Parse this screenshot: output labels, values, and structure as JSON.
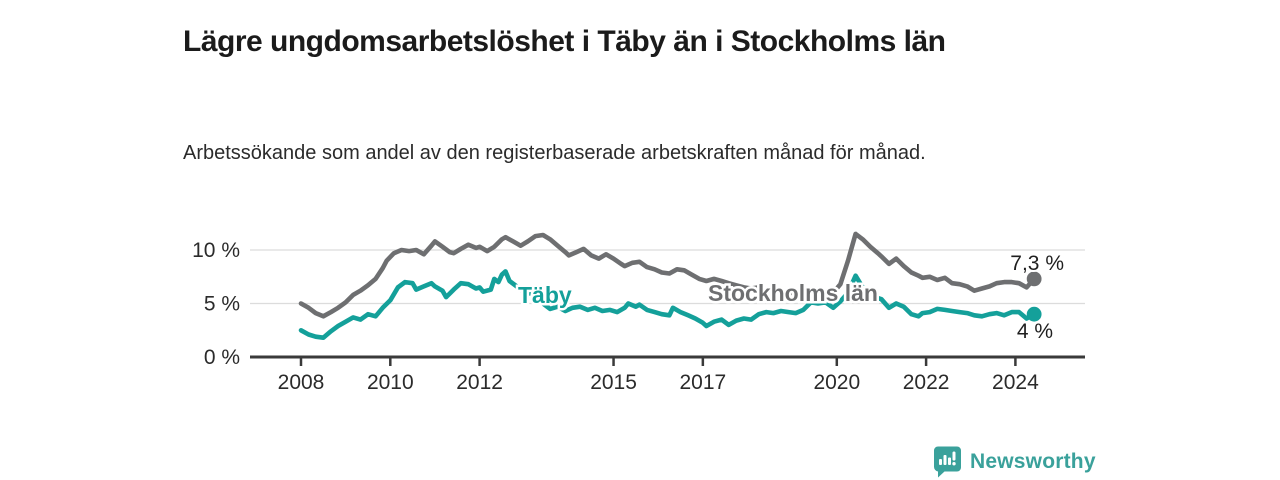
{
  "header": {
    "title": "Lägre ungdomsarbetslöshet i Täby än i Stockholms län",
    "subtitle": "Arbetssökande som andel av den registerbaserade arbetskraften månad för månad."
  },
  "footer": {
    "brand": "Newsworthy",
    "brand_color": "#3AA19B",
    "logo_icon": "newsworthy-bubble-chart-icon"
  },
  "colors": {
    "taby_line": "#14A09A",
    "stockholm_line": "#6E6F71",
    "axis": "#3a3a3a",
    "grid": "#dcdcdc",
    "tick_label": "#2b2b2b",
    "end_label": "#1f1f1f"
  },
  "chart_data": {
    "type": "line",
    "title": "Lägre ungdomsarbetslöshet i Täby än i Stockholms län",
    "subtitle": "Arbetssökande som andel av den registerbaserade arbetskraften månad för månad.",
    "unit": "%",
    "grid": "horizontal-on",
    "legend_position": "inline-labels",
    "x_range": [
      2008,
      2024.42
    ],
    "ylim": [
      0,
      12
    ],
    "x_ticks": [
      {
        "v": 2008,
        "label": "2008"
      },
      {
        "v": 2010,
        "label": "2010"
      },
      {
        "v": 2012,
        "label": "2012"
      },
      {
        "v": 2015,
        "label": "2015"
      },
      {
        "v": 2017,
        "label": "2017"
      },
      {
        "v": 2020,
        "label": "2020"
      },
      {
        "v": 2022,
        "label": "2022"
      },
      {
        "v": 2024,
        "label": "2024"
      }
    ],
    "y_ticks": [
      {
        "v": 0,
        "label": "0 %"
      },
      {
        "v": 5,
        "label": "5 %"
      },
      {
        "v": 10,
        "label": "10 %"
      }
    ],
    "series": [
      {
        "name": "Stockholms län",
        "color": "#6E6F71",
        "end_label": "7,3 %",
        "end_value": 7.3,
        "points": [
          [
            2008.0,
            5.0
          ],
          [
            2008.17,
            4.6
          ],
          [
            2008.33,
            4.1
          ],
          [
            2008.5,
            3.8
          ],
          [
            2008.67,
            4.2
          ],
          [
            2008.83,
            4.6
          ],
          [
            2009.0,
            5.1
          ],
          [
            2009.17,
            5.8
          ],
          [
            2009.33,
            6.2
          ],
          [
            2009.5,
            6.7
          ],
          [
            2009.67,
            7.3
          ],
          [
            2009.83,
            8.3
          ],
          [
            2009.92,
            9.0
          ],
          [
            2010.08,
            9.7
          ],
          [
            2010.25,
            10.0
          ],
          [
            2010.42,
            9.9
          ],
          [
            2010.58,
            10.0
          ],
          [
            2010.75,
            9.6
          ],
          [
            2010.92,
            10.4
          ],
          [
            2011.0,
            10.8
          ],
          [
            2011.17,
            10.3
          ],
          [
            2011.33,
            9.8
          ],
          [
            2011.42,
            9.7
          ],
          [
            2011.58,
            10.1
          ],
          [
            2011.75,
            10.5
          ],
          [
            2011.92,
            10.2
          ],
          [
            2012.0,
            10.3
          ],
          [
            2012.17,
            9.9
          ],
          [
            2012.33,
            10.3
          ],
          [
            2012.5,
            11.0
          ],
          [
            2012.58,
            11.2
          ],
          [
            2012.75,
            10.8
          ],
          [
            2012.92,
            10.4
          ],
          [
            2013.08,
            10.8
          ],
          [
            2013.25,
            11.3
          ],
          [
            2013.42,
            11.4
          ],
          [
            2013.58,
            11.0
          ],
          [
            2013.75,
            10.4
          ],
          [
            2013.92,
            9.8
          ],
          [
            2014.0,
            9.5
          ],
          [
            2014.17,
            9.8
          ],
          [
            2014.33,
            10.1
          ],
          [
            2014.5,
            9.5
          ],
          [
            2014.67,
            9.2
          ],
          [
            2014.83,
            9.6
          ],
          [
            2015.0,
            9.2
          ],
          [
            2015.17,
            8.7
          ],
          [
            2015.25,
            8.5
          ],
          [
            2015.42,
            8.8
          ],
          [
            2015.58,
            8.9
          ],
          [
            2015.75,
            8.4
          ],
          [
            2015.92,
            8.2
          ],
          [
            2016.08,
            7.9
          ],
          [
            2016.25,
            7.8
          ],
          [
            2016.42,
            8.2
          ],
          [
            2016.58,
            8.1
          ],
          [
            2016.75,
            7.7
          ],
          [
            2016.92,
            7.3
          ],
          [
            2017.08,
            7.1
          ],
          [
            2017.25,
            7.3
          ],
          [
            2017.42,
            7.1
          ],
          [
            2017.58,
            6.9
          ],
          [
            2017.75,
            6.7
          ],
          [
            2017.92,
            6.5
          ],
          [
            2018.08,
            6.4
          ],
          [
            2018.25,
            6.5
          ],
          [
            2018.42,
            6.3
          ],
          [
            2018.58,
            6.2
          ],
          [
            2018.75,
            6.1
          ],
          [
            2018.92,
            6.0
          ],
          [
            2019.08,
            6.0
          ],
          [
            2019.25,
            6.2
          ],
          [
            2019.42,
            6.1
          ],
          [
            2019.58,
            6.0
          ],
          [
            2019.75,
            6.1
          ],
          [
            2019.92,
            6.2
          ],
          [
            2020.0,
            6.4
          ],
          [
            2020.08,
            6.8
          ],
          [
            2020.25,
            9.0
          ],
          [
            2020.42,
            11.5
          ],
          [
            2020.58,
            11.0
          ],
          [
            2020.75,
            10.3
          ],
          [
            2020.92,
            9.7
          ],
          [
            2021.0,
            9.4
          ],
          [
            2021.17,
            8.7
          ],
          [
            2021.33,
            9.2
          ],
          [
            2021.5,
            8.5
          ],
          [
            2021.67,
            7.9
          ],
          [
            2021.83,
            7.6
          ],
          [
            2021.92,
            7.4
          ],
          [
            2022.08,
            7.5
          ],
          [
            2022.25,
            7.2
          ],
          [
            2022.42,
            7.4
          ],
          [
            2022.58,
            6.9
          ],
          [
            2022.75,
            6.8
          ],
          [
            2022.92,
            6.6
          ],
          [
            2023.08,
            6.2
          ],
          [
            2023.25,
            6.4
          ],
          [
            2023.42,
            6.6
          ],
          [
            2023.58,
            6.9
          ],
          [
            2023.75,
            7.0
          ],
          [
            2023.92,
            7.0
          ],
          [
            2024.08,
            6.9
          ],
          [
            2024.25,
            6.5
          ],
          [
            2024.42,
            7.3
          ]
        ]
      },
      {
        "name": "Täby",
        "color": "#14A09A",
        "end_label": "4 %",
        "end_value": 4.0,
        "points": [
          [
            2008.0,
            2.5
          ],
          [
            2008.17,
            2.1
          ],
          [
            2008.33,
            1.9
          ],
          [
            2008.5,
            1.8
          ],
          [
            2008.67,
            2.4
          ],
          [
            2008.83,
            2.9
          ],
          [
            2009.0,
            3.3
          ],
          [
            2009.17,
            3.7
          ],
          [
            2009.33,
            3.5
          ],
          [
            2009.5,
            4.0
          ],
          [
            2009.67,
            3.8
          ],
          [
            2009.83,
            4.6
          ],
          [
            2010.0,
            5.3
          ],
          [
            2010.17,
            6.5
          ],
          [
            2010.33,
            7.0
          ],
          [
            2010.5,
            6.9
          ],
          [
            2010.58,
            6.3
          ],
          [
            2010.75,
            6.6
          ],
          [
            2010.92,
            6.9
          ],
          [
            2011.0,
            6.6
          ],
          [
            2011.17,
            6.2
          ],
          [
            2011.25,
            5.6
          ],
          [
            2011.42,
            6.3
          ],
          [
            2011.58,
            6.9
          ],
          [
            2011.75,
            6.8
          ],
          [
            2011.92,
            6.4
          ],
          [
            2012.0,
            6.5
          ],
          [
            2012.08,
            6.1
          ],
          [
            2012.25,
            6.3
          ],
          [
            2012.33,
            7.3
          ],
          [
            2012.42,
            7.0
          ],
          [
            2012.5,
            7.7
          ],
          [
            2012.58,
            8.0
          ],
          [
            2012.67,
            7.1
          ],
          [
            2012.83,
            6.6
          ],
          [
            2012.92,
            6.3
          ],
          [
            2013.08,
            6.0
          ],
          [
            2013.25,
            5.8
          ],
          [
            2013.42,
            5.0
          ],
          [
            2013.58,
            4.5
          ],
          [
            2013.75,
            4.7
          ],
          [
            2013.92,
            4.3
          ],
          [
            2014.08,
            4.6
          ],
          [
            2014.25,
            4.7
          ],
          [
            2014.42,
            4.4
          ],
          [
            2014.58,
            4.6
          ],
          [
            2014.75,
            4.3
          ],
          [
            2014.92,
            4.4
          ],
          [
            2015.08,
            4.2
          ],
          [
            2015.25,
            4.6
          ],
          [
            2015.33,
            5.0
          ],
          [
            2015.5,
            4.7
          ],
          [
            2015.58,
            4.9
          ],
          [
            2015.75,
            4.4
          ],
          [
            2015.92,
            4.2
          ],
          [
            2016.08,
            4.0
          ],
          [
            2016.25,
            3.9
          ],
          [
            2016.33,
            4.6
          ],
          [
            2016.5,
            4.2
          ],
          [
            2016.67,
            3.9
          ],
          [
            2016.83,
            3.6
          ],
          [
            2017.0,
            3.2
          ],
          [
            2017.08,
            2.9
          ],
          [
            2017.25,
            3.3
          ],
          [
            2017.42,
            3.5
          ],
          [
            2017.58,
            3.0
          ],
          [
            2017.75,
            3.4
          ],
          [
            2017.92,
            3.6
          ],
          [
            2018.08,
            3.5
          ],
          [
            2018.25,
            4.0
          ],
          [
            2018.42,
            4.2
          ],
          [
            2018.58,
            4.1
          ],
          [
            2018.75,
            4.3
          ],
          [
            2018.92,
            4.2
          ],
          [
            2019.08,
            4.1
          ],
          [
            2019.25,
            4.4
          ],
          [
            2019.42,
            5.1
          ],
          [
            2019.58,
            5.0
          ],
          [
            2019.75,
            5.1
          ],
          [
            2019.92,
            4.6
          ],
          [
            2020.08,
            5.2
          ],
          [
            2020.25,
            6.0
          ],
          [
            2020.42,
            7.6
          ],
          [
            2020.58,
            6.5
          ],
          [
            2020.75,
            5.9
          ],
          [
            2020.92,
            5.5
          ],
          [
            2021.0,
            5.4
          ],
          [
            2021.17,
            4.6
          ],
          [
            2021.33,
            5.0
          ],
          [
            2021.5,
            4.7
          ],
          [
            2021.67,
            4.0
          ],
          [
            2021.83,
            3.8
          ],
          [
            2021.92,
            4.1
          ],
          [
            2022.08,
            4.2
          ],
          [
            2022.25,
            4.5
          ],
          [
            2022.42,
            4.4
          ],
          [
            2022.58,
            4.3
          ],
          [
            2022.75,
            4.2
          ],
          [
            2022.92,
            4.1
          ],
          [
            2023.08,
            3.9
          ],
          [
            2023.25,
            3.8
          ],
          [
            2023.42,
            4.0
          ],
          [
            2023.58,
            4.1
          ],
          [
            2023.75,
            3.9
          ],
          [
            2023.92,
            4.2
          ],
          [
            2024.08,
            4.2
          ],
          [
            2024.25,
            3.6
          ],
          [
            2024.42,
            4.0
          ]
        ]
      }
    ]
  }
}
